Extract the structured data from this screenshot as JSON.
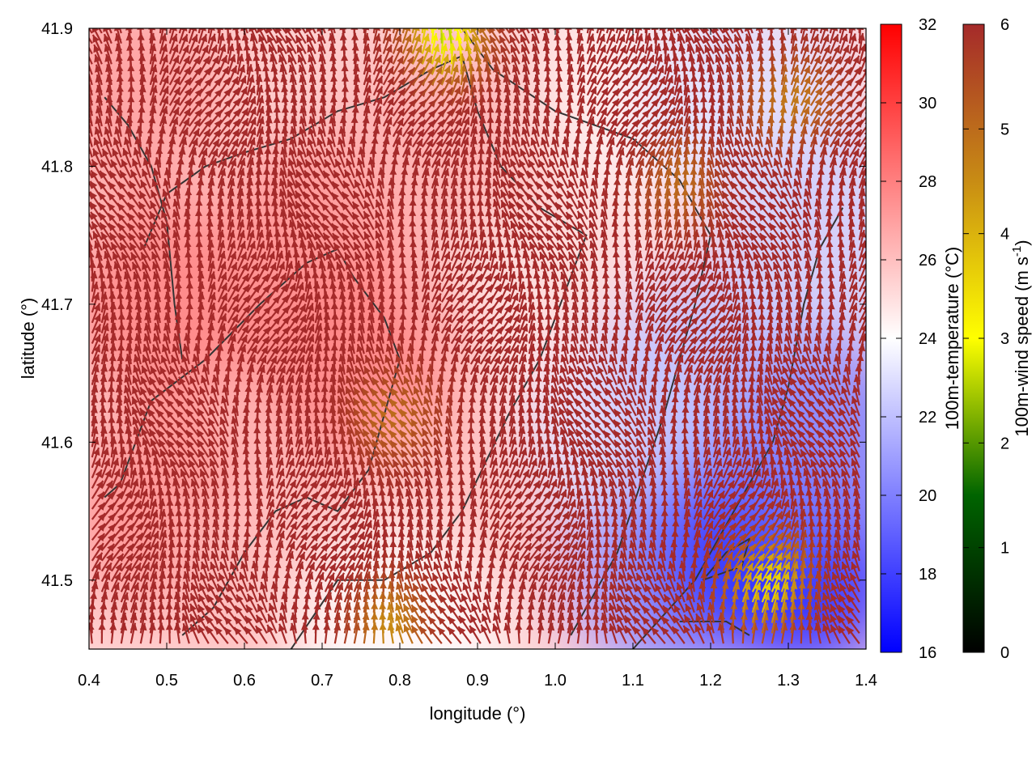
{
  "chart_data": {
    "type": "heatmap",
    "title": "",
    "xlabel": "longitude (°)",
    "ylabel": "latitude (°)",
    "xlim": [
      0.4,
      1.4
    ],
    "ylim": [
      41.45,
      41.9
    ],
    "xticks": [
      0.4,
      0.5,
      0.6,
      0.7,
      0.8,
      0.9,
      1.0,
      1.1,
      1.2,
      1.3,
      1.4
    ],
    "xtick_labels": [
      "0.4",
      "0.5",
      "0.6",
      "0.7",
      "0.8",
      "0.9",
      "1.0",
      "1.1",
      "1.2",
      "1.3",
      "1.4"
    ],
    "yticks": [
      41.5,
      41.6,
      41.7,
      41.8,
      41.9
    ],
    "ytick_labels": [
      "41.5",
      "41.6",
      "41.7",
      "41.8",
      "41.9"
    ],
    "grid": false,
    "temperature_colorbar": {
      "label": "100m-temperature (°C)",
      "range": [
        16,
        32
      ],
      "ticks": [
        16,
        18,
        20,
        22,
        24,
        26,
        28,
        30,
        32
      ],
      "tick_labels": [
        "16",
        "18",
        "20",
        "22",
        "24",
        "26",
        "28",
        "30",
        "32"
      ],
      "colors": [
        "#0000ff",
        "#ffffff",
        "#ff0000"
      ]
    },
    "wind_colorbar": {
      "label": "100m-wind speed (m s",
      "label_sup": "-1",
      "label_end": ")",
      "range": [
        0,
        6
      ],
      "ticks": [
        0,
        1,
        2,
        3,
        4,
        5,
        6
      ],
      "tick_labels": [
        "0",
        "1",
        "2",
        "3",
        "4",
        "5",
        "6"
      ],
      "colors": [
        "#000000",
        "#006400",
        "#ffff00",
        "#c88c14",
        "#a52a2a"
      ]
    },
    "temperature_field_samples": [
      {
        "lon": 0.45,
        "lat": 41.85,
        "temp": 27.0
      },
      {
        "lon": 0.5,
        "lat": 41.7,
        "temp": 28.0
      },
      {
        "lon": 0.5,
        "lat": 41.55,
        "temp": 27.5
      },
      {
        "lon": 0.7,
        "lat": 41.75,
        "temp": 27.5
      },
      {
        "lon": 0.75,
        "lat": 41.65,
        "temp": 28.0
      },
      {
        "lon": 0.85,
        "lat": 41.82,
        "temp": 26.5
      },
      {
        "lon": 0.65,
        "lat": 41.5,
        "temp": 26.0
      },
      {
        "lon": 0.9,
        "lat": 41.55,
        "temp": 26.0
      },
      {
        "lon": 1.0,
        "lat": 41.7,
        "temp": 25.0
      },
      {
        "lon": 1.1,
        "lat": 41.85,
        "temp": 24.5
      },
      {
        "lon": 1.25,
        "lat": 41.85,
        "temp": 23.0
      },
      {
        "lon": 1.1,
        "lat": 41.6,
        "temp": 23.0
      },
      {
        "lon": 1.2,
        "lat": 41.65,
        "temp": 22.0
      },
      {
        "lon": 1.15,
        "lat": 41.5,
        "temp": 20.5
      },
      {
        "lon": 1.25,
        "lat": 41.52,
        "temp": 18.0
      },
      {
        "lon": 1.32,
        "lat": 41.5,
        "temp": 17.5
      },
      {
        "lon": 1.35,
        "lat": 41.6,
        "temp": 20.0
      },
      {
        "lon": 1.35,
        "lat": 41.75,
        "temp": 22.5
      },
      {
        "lon": 0.8,
        "lat": 41.46,
        "temp": 24.0
      }
    ],
    "wind_field": {
      "predominant_speed": 6,
      "predominant_direction": "north (northward)",
      "slow_regions": [
        {
          "lon": 1.27,
          "lat": 41.49,
          "speed": 3.5
        },
        {
          "lon": 0.86,
          "lat": 41.89,
          "speed": 2.5
        },
        {
          "lon": 0.8,
          "lat": 41.61,
          "speed": 5.0
        },
        {
          "lon": 1.3,
          "lat": 41.84,
          "speed": 4.8
        },
        {
          "lon": 0.79,
          "lat": 41.46,
          "speed": 4.5
        },
        {
          "lon": 1.16,
          "lat": 41.78,
          "speed": 5.0
        }
      ]
    }
  }
}
